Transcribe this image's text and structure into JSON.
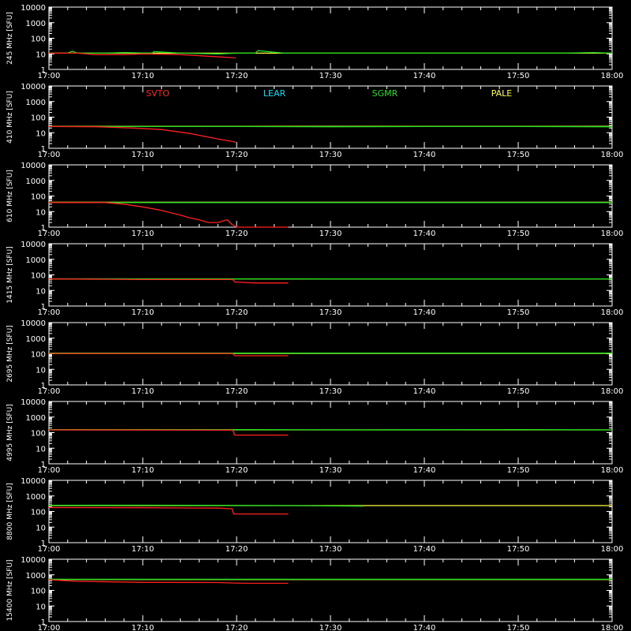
{
  "legend": [
    {
      "name": "SVTO",
      "color": "#ff2020"
    },
    {
      "name": "LEAR",
      "color": "#00e0ff"
    },
    {
      "name": "SGMR",
      "color": "#20e020"
    },
    {
      "name": "PALE",
      "color": "#ffff40"
    }
  ],
  "x_ticks": [
    "17:00",
    "17:10",
    "17:20",
    "17:30",
    "17:40",
    "17:50",
    "18:00"
  ],
  "y_ticks": [
    "1",
    "10",
    "100",
    "1000",
    "10000"
  ],
  "chart_data": [
    {
      "type": "line",
      "ylabel": "245 MHz [SFU]",
      "y_scale": "log",
      "ylim": [
        1,
        10000
      ],
      "x_unit": "minutes after 17:00",
      "xlim": [
        0,
        60
      ],
      "legend_panel": false,
      "series": [
        {
          "name": "PALE",
          "color": "#ffff40",
          "x": [
            0,
            60
          ],
          "y": [
            11,
            11
          ]
        },
        {
          "name": "SGMR",
          "color": "#20e020",
          "x": [
            0,
            2,
            2.5,
            3,
            6,
            8,
            11,
            11.2,
            14,
            18,
            20,
            22,
            22.3,
            25,
            30,
            35,
            40,
            45,
            50,
            55,
            58,
            60
          ],
          "y": [
            11,
            11,
            15,
            11,
            11,
            12,
            11,
            14,
            11,
            10,
            11,
            11,
            16,
            11,
            11,
            11,
            11,
            11,
            11,
            11,
            12,
            11
          ]
        },
        {
          "name": "SVTO",
          "color": "#ff2020",
          "x": [
            0,
            3,
            5,
            8,
            10,
            14,
            17,
            19.9
          ],
          "y": [
            11,
            11,
            9,
            9,
            10,
            9,
            7,
            5.5
          ]
        }
      ]
    },
    {
      "type": "line",
      "ylabel": "410 MHz [SFU]",
      "y_scale": "log",
      "ylim": [
        1,
        10000
      ],
      "x_unit": "minutes after 17:00",
      "xlim": [
        0,
        60
      ],
      "legend_panel": true,
      "series": [
        {
          "name": "LEAR",
          "color": "#00e0ff",
          "x": [
            0,
            60
          ],
          "y": [
            25,
            25
          ]
        },
        {
          "name": "PALE",
          "color": "#ffff40",
          "x": [
            0,
            60
          ],
          "y": [
            26,
            26
          ]
        },
        {
          "name": "SGMR",
          "color": "#20e020",
          "x": [
            0,
            10,
            20,
            30,
            40,
            50,
            60
          ],
          "y": [
            25,
            25,
            25,
            24,
            25,
            25,
            24
          ]
        },
        {
          "name": "SVTO",
          "color": "#ff2020",
          "x": [
            0,
            5,
            9,
            12,
            15,
            18,
            19.9
          ],
          "y": [
            25,
            24,
            20,
            16,
            9,
            4,
            2.5
          ]
        }
      ]
    },
    {
      "type": "line",
      "ylabel": "610 MHz [SFU]",
      "y_scale": "log",
      "ylim": [
        1,
        10000
      ],
      "x_unit": "minutes after 17:00",
      "xlim": [
        0,
        60
      ],
      "legend_panel": false,
      "series": [
        {
          "name": "PALE",
          "color": "#ffff40",
          "x": [
            0,
            60
          ],
          "y": [
            40,
            40
          ]
        },
        {
          "name": "SGMR",
          "color": "#20e020",
          "x": [
            0,
            60
          ],
          "y": [
            38,
            38
          ]
        },
        {
          "name": "SVTO",
          "color": "#ff2020",
          "x": [
            0,
            6,
            8,
            10,
            12,
            14,
            15,
            16,
            17,
            18,
            19,
            19.5,
            20,
            25.5
          ],
          "y": [
            38,
            38,
            30,
            20,
            12,
            6,
            4,
            3,
            2,
            2,
            3,
            1.5,
            1,
            1
          ]
        }
      ]
    },
    {
      "type": "line",
      "ylabel": "1415 MHz [SFU]",
      "y_scale": "log",
      "ylim": [
        1,
        10000
      ],
      "x_unit": "minutes after 17:00",
      "xlim": [
        0,
        60
      ],
      "legend_panel": false,
      "series": [
        {
          "name": "PALE",
          "color": "#ffff40",
          "x": [
            0,
            60
          ],
          "y": [
            55,
            55
          ]
        },
        {
          "name": "SGMR",
          "color": "#20e020",
          "x": [
            0,
            15,
            30,
            45,
            60
          ],
          "y": [
            56,
            56,
            55,
            55,
            55
          ]
        },
        {
          "name": "SVTO",
          "color": "#ff2020",
          "x": [
            0,
            10,
            19.6,
            19.8,
            22,
            25.5
          ],
          "y": [
            55,
            50,
            50,
            35,
            30,
            30
          ]
        }
      ]
    },
    {
      "type": "line",
      "ylabel": "2695 MHz [SFU]",
      "y_scale": "log",
      "ylim": [
        1,
        10000
      ],
      "x_unit": "minutes after 17:00",
      "xlim": [
        0,
        60
      ],
      "legend_panel": false,
      "series": [
        {
          "name": "PALE",
          "color": "#ffff40",
          "x": [
            0,
            60
          ],
          "y": [
            105,
            105
          ]
        },
        {
          "name": "SGMR",
          "color": "#20e020",
          "x": [
            0,
            20,
            40,
            60
          ],
          "y": [
            110,
            110,
            110,
            110
          ]
        },
        {
          "name": "SVTO",
          "color": "#ff2020",
          "x": [
            0,
            19.6,
            19.8,
            25.5
          ],
          "y": [
            105,
            105,
            75,
            75
          ]
        }
      ]
    },
    {
      "type": "line",
      "ylabel": "4995 MHz [SFU]",
      "y_scale": "log",
      "ylim": [
        1,
        10000
      ],
      "x_unit": "minutes after 17:00",
      "xlim": [
        0,
        60
      ],
      "legend_panel": false,
      "series": [
        {
          "name": "PALE",
          "color": "#ffff40",
          "x": [
            0,
            60
          ],
          "y": [
            150,
            150
          ]
        },
        {
          "name": "SGMR",
          "color": "#20e020",
          "x": [
            0,
            20,
            33.5,
            50,
            60
          ],
          "y": [
            155,
            155,
            150,
            155,
            150
          ]
        },
        {
          "name": "SVTO",
          "color": "#ff2020",
          "x": [
            0,
            19.6,
            19.8,
            25.5
          ],
          "y": [
            150,
            145,
            70,
            70
          ]
        }
      ]
    },
    {
      "type": "line",
      "ylabel": "8800 MHz [SFU]",
      "y_scale": "log",
      "ylim": [
        1,
        10000
      ],
      "x_unit": "minutes after 17:00",
      "xlim": [
        0,
        60
      ],
      "legend_panel": false,
      "series": [
        {
          "name": "PALE",
          "color": "#ffff40",
          "x": [
            0,
            60
          ],
          "y": [
            240,
            240
          ]
        },
        {
          "name": "SGMR",
          "color": "#20e020",
          "x": [
            0,
            10,
            20,
            25,
            33.5
          ],
          "y": [
            250,
            255,
            245,
            240,
            220
          ]
        },
        {
          "name": "SVTO",
          "color": "#ff2020",
          "x": [
            0,
            10,
            18,
            19.5,
            19.7,
            25.5
          ],
          "y": [
            180,
            175,
            165,
            150,
            70,
            70
          ]
        }
      ]
    },
    {
      "type": "line",
      "ylabel": "15400 MHz [SFU]",
      "y_scale": "log",
      "ylim": [
        1,
        10000
      ],
      "x_unit": "minutes after 17:00",
      "xlim": [
        0,
        60
      ],
      "legend_panel": false,
      "series": [
        {
          "name": "PALE",
          "color": "#ffff40",
          "x": [
            0,
            60
          ],
          "y": [
            500,
            500
          ]
        },
        {
          "name": "SGMR",
          "color": "#20e020",
          "x": [
            0,
            60
          ],
          "y": [
            520,
            520
          ]
        },
        {
          "name": "SVTO",
          "color": "#ff2020",
          "x": [
            0,
            3,
            10,
            18,
            19.5,
            21,
            25.5
          ],
          "y": [
            480,
            380,
            330,
            320,
            300,
            285,
            285
          ]
        }
      ]
    }
  ]
}
